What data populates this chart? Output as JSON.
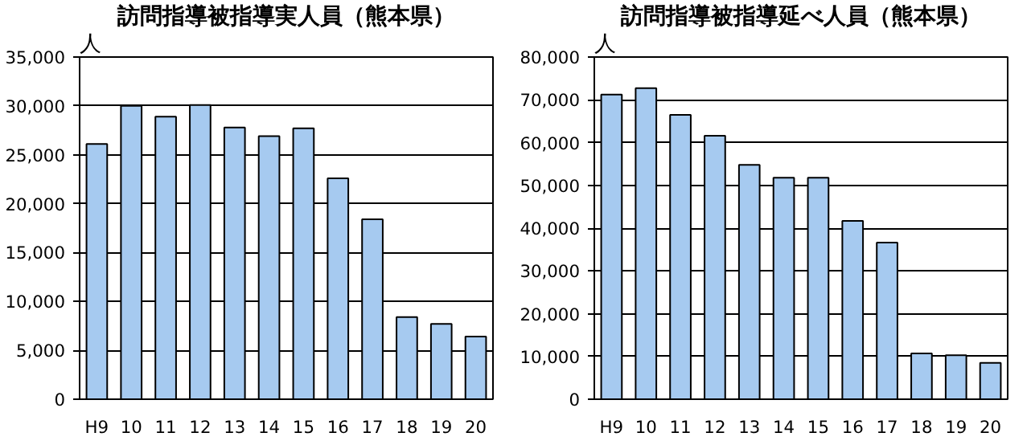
{
  "chart_data": [
    {
      "type": "bar",
      "title": "訪問指導被指導実人員（熊本県）",
      "ylabel": "人",
      "categories": [
        "H9",
        "10",
        "11",
        "12",
        "13",
        "14",
        "15",
        "16",
        "17",
        "18",
        "19",
        "20"
      ],
      "series": [
        {
          "color": "#a6caf0",
          "values": [
            26100,
            30000,
            28900,
            30100,
            27800,
            26900,
            27700,
            22600,
            18400,
            8400,
            7700,
            6400
          ]
        }
      ],
      "ylim": [
        0,
        35000
      ],
      "yticks": [
        0,
        {
          "value": 5000,
          "label": "5,000"
        },
        {
          "value": 10000,
          "label": "10,000"
        },
        {
          "value": 15000,
          "label": "15,000"
        },
        {
          "value": 20000,
          "label": "20,000"
        },
        {
          "value": 25000,
          "label": "25,000"
        },
        {
          "value": 30000,
          "label": "30,000"
        },
        {
          "value": 35000,
          "label": "35,000"
        }
      ],
      "grid": "y"
    },
    {
      "type": "bar",
      "title": "訪問指導被指導延べ人員（熊本県）",
      "ylabel": "人",
      "categories": [
        "H9",
        "10",
        "11",
        "12",
        "13",
        "14",
        "15",
        "16",
        "17",
        "18",
        "19",
        "20"
      ],
      "series": [
        {
          "color": "#a6caf0",
          "values": [
            71200,
            72700,
            66500,
            61600,
            54800,
            51800,
            51800,
            41700,
            36600,
            10700,
            10300,
            8500
          ]
        }
      ],
      "ylim": [
        0,
        80000
      ],
      "yticks": [
        0,
        {
          "value": 10000,
          "label": "10,000"
        },
        {
          "value": 20000,
          "label": "20,000"
        },
        {
          "value": 30000,
          "label": "30,000"
        },
        {
          "value": 40000,
          "label": "40,000"
        },
        {
          "value": 50000,
          "label": "50,000"
        },
        {
          "value": 60000,
          "label": "60,000"
        },
        {
          "value": 70000,
          "label": "70,000"
        },
        {
          "value": 80000,
          "label": "80,000"
        }
      ],
      "grid": "y"
    }
  ]
}
